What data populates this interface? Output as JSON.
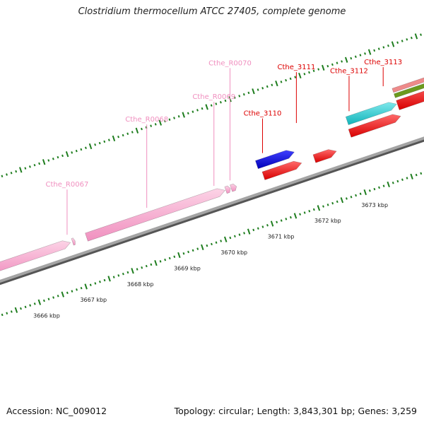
{
  "title": "Clostridium thermocellum ATCC 27405, complete genome",
  "footer": {
    "accession": "Accession: NC_009012",
    "stats": "Topology: circular; Length: 3,843,301 bp; Genes: 3,259"
  },
  "colors": {
    "rna": "#f7a3cb",
    "rna_label": "#f08fbf",
    "cds_forward": "#0000e0",
    "cds_reverse": "#ff0000",
    "cds_label": "#dd0000",
    "cyan_feature": "#1cc9cf",
    "olive_feature": "#6b9a1e",
    "salmon_feature": "#ee8a8a",
    "backbone": "#888888",
    "tick": "#1e7d1e"
  },
  "features": [
    {
      "label": "Cthe_R0067",
      "kind": "rna"
    },
    {
      "label": "Cthe_R0068",
      "kind": "rna"
    },
    {
      "label": "Cthe_R0069",
      "kind": "rna"
    },
    {
      "label": "Cthe_R0070",
      "kind": "rna"
    },
    {
      "label": "Cthe_3110",
      "kind": "cds"
    },
    {
      "label": "Cthe_3111",
      "kind": "cds"
    },
    {
      "label": "Cthe_3112",
      "kind": "cds"
    },
    {
      "label": "Cthe_3113",
      "kind": "cds"
    }
  ],
  "kbp_labels": [
    "3666 kbp",
    "3667 kbp",
    "3668 kbp",
    "3669 kbp",
    "3670 kbp",
    "3671 kbp",
    "3672 kbp",
    "3673 kbp"
  ]
}
